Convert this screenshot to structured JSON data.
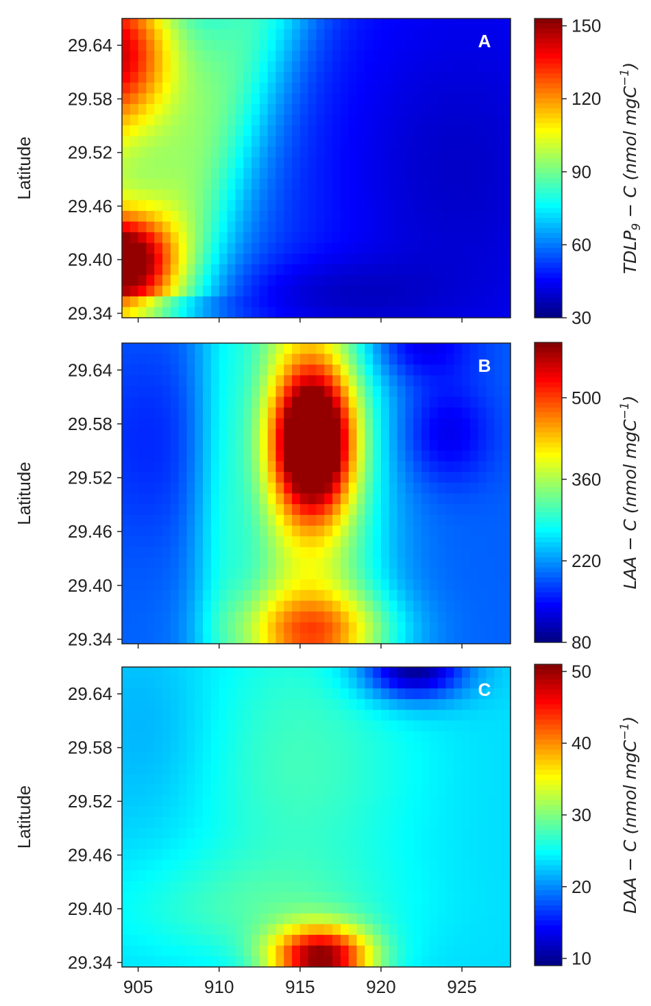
{
  "chart_data": [
    {
      "type": "heatmap",
      "panel_label": "A",
      "ylabel": "Latitude",
      "xlim": [
        904,
        928
      ],
      "ylim": [
        29.335,
        29.67
      ],
      "x_ticks": [
        905,
        910,
        915,
        920,
        925
      ],
      "y_ticks": [
        29.34,
        29.4,
        29.46,
        29.52,
        29.58,
        29.64
      ],
      "y_tick_labels": [
        "29.34",
        "29.40",
        "29.46",
        "29.52",
        "29.58",
        "29.64"
      ],
      "colorbar": {
        "label_main": "TDLP",
        "label_sub": "9",
        "label_rest": " − C (nmol mgC",
        "label_sup": "−1",
        "label_end": ")",
        "range": [
          30,
          153
        ],
        "ticks": [
          30,
          60,
          90,
          120,
          150
        ],
        "tick_labels": [
          "30",
          "60",
          "90",
          "120",
          "150"
        ]
      },
      "features": [
        {
          "x": 904.5,
          "y": 29.62,
          "value": 130,
          "description": "high near top-left edge"
        },
        {
          "x": 904.2,
          "y": 29.4,
          "value": 150,
          "description": "maximum at left edge"
        },
        {
          "x": 907,
          "y": 29.5,
          "value": 90,
          "description": "band extending toward 912,29.66"
        },
        {
          "x": 916,
          "y": 29.36,
          "value": 34,
          "description": "minimum near bottom"
        },
        {
          "x": 924,
          "y": 29.5,
          "value": 40,
          "description": "low background to the right"
        }
      ]
    },
    {
      "type": "heatmap",
      "panel_label": "B",
      "ylabel": "Latitude",
      "xlim": [
        904,
        928
      ],
      "ylim": [
        29.335,
        29.67
      ],
      "x_ticks": [
        905,
        910,
        915,
        920,
        925
      ],
      "y_ticks": [
        29.34,
        29.4,
        29.46,
        29.52,
        29.58,
        29.64
      ],
      "y_tick_labels": [
        "29.34",
        "29.40",
        "29.46",
        "29.52",
        "29.58",
        "29.64"
      ],
      "colorbar": {
        "label_main": "LAA",
        "label_sub": "",
        "label_rest": " − C (nmol mgC",
        "label_sup": "−1",
        "label_end": ")",
        "range": [
          80,
          595
        ],
        "ticks": [
          80,
          220,
          360,
          500
        ],
        "tick_labels": [
          "80",
          "220",
          "360",
          "500"
        ]
      },
      "features": [
        {
          "x": 915.8,
          "y": 29.565,
          "value": 590,
          "description": "maximum"
        },
        {
          "x": 916,
          "y": 29.35,
          "value": 420,
          "description": "high near bottom"
        },
        {
          "x": 906,
          "y": 29.56,
          "value": 150,
          "description": "low on left"
        },
        {
          "x": 924,
          "y": 29.57,
          "value": 100,
          "description": "minimum on right"
        },
        {
          "x": 922,
          "y": 29.66,
          "value": 90,
          "description": "low at top right"
        }
      ]
    },
    {
      "type": "heatmap",
      "panel_label": "C",
      "ylabel": "Latitude",
      "xlabel": "",
      "xlim": [
        904,
        928
      ],
      "ylim": [
        29.335,
        29.67
      ],
      "x_ticks": [
        905,
        910,
        915,
        920,
        925
      ],
      "x_tick_labels": [
        "905",
        "910",
        "915",
        "920",
        "925"
      ],
      "y_ticks": [
        29.34,
        29.4,
        29.46,
        29.52,
        29.58,
        29.64
      ],
      "y_tick_labels": [
        "29.34",
        "29.40",
        "29.46",
        "29.52",
        "29.58",
        "29.64"
      ],
      "colorbar": {
        "label_main": "DAA",
        "label_sub": "",
        "label_rest": " − C (nmol mgC",
        "label_sup": "−1",
        "label_end": ")",
        "range": [
          9,
          51
        ],
        "ticks": [
          10,
          20,
          30,
          40,
          50
        ],
        "tick_labels": [
          "10",
          "20",
          "30",
          "40",
          "50"
        ]
      },
      "features": [
        {
          "x": 916.3,
          "y": 29.345,
          "value": 50,
          "description": "maximum near bottom"
        },
        {
          "x": 922,
          "y": 29.665,
          "value": 10,
          "description": "minimum at top"
        },
        {
          "x": 915.5,
          "y": 29.56,
          "value": 29,
          "description": "moderate center"
        },
        {
          "x": 906,
          "y": 29.6,
          "value": 22,
          "description": "left area"
        },
        {
          "x": 927,
          "y": 29.6,
          "value": 21,
          "description": "right area"
        }
      ]
    }
  ]
}
